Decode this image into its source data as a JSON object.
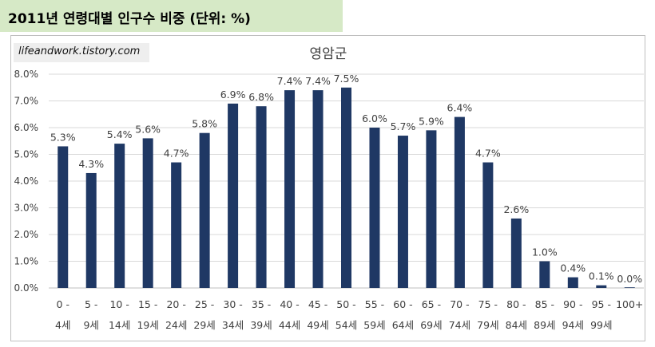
{
  "header": {
    "title": "2011년 연령대별 인구수 비중 (단위: %)"
  },
  "watermark": {
    "text": "lifeandwork.tistory.com"
  },
  "chart_data": {
    "type": "bar",
    "title": "영암군",
    "categories": [
      [
        "0 -",
        "4세"
      ],
      [
        "5 -",
        "9세"
      ],
      [
        "10 -",
        "14세"
      ],
      [
        "15 -",
        "19세"
      ],
      [
        "20 -",
        "24세"
      ],
      [
        "25 -",
        "29세"
      ],
      [
        "30 -",
        "34세"
      ],
      [
        "35 -",
        "39세"
      ],
      [
        "40 -",
        "44세"
      ],
      [
        "45 -",
        "49세"
      ],
      [
        "50 -",
        "54세"
      ],
      [
        "55 -",
        "59세"
      ],
      [
        "60 -",
        "64세"
      ],
      [
        "65 -",
        "69세"
      ],
      [
        "70 -",
        "74세"
      ],
      [
        "75 -",
        "79세"
      ],
      [
        "80 -",
        "84세"
      ],
      [
        "85 -",
        "89세"
      ],
      [
        "90 -",
        "94세"
      ],
      [
        "95 -",
        "99세"
      ],
      [
        "100+",
        ""
      ]
    ],
    "values": [
      5.3,
      4.3,
      5.4,
      5.6,
      4.7,
      5.8,
      6.9,
      6.8,
      7.4,
      7.4,
      7.5,
      6.0,
      5.7,
      5.9,
      6.4,
      4.7,
      2.6,
      1.0,
      0.4,
      0.1,
      0.0
    ],
    "value_labels": [
      "5.3%",
      "4.3%",
      "5.4%",
      "5.6%",
      "4.7%",
      "5.8%",
      "6.9%",
      "6.8%",
      "7.4%",
      "7.4%",
      "7.5%",
      "6.0%",
      "5.7%",
      "5.9%",
      "6.4%",
      "4.7%",
      "2.6%",
      "1.0%",
      "0.4%",
      "0.1%",
      "0.0%"
    ],
    "yticks": [
      "0.0%",
      "1.0%",
      "2.0%",
      "3.0%",
      "4.0%",
      "5.0%",
      "6.0%",
      "7.0%",
      "8.0%"
    ],
    "ylim": [
      0,
      8
    ],
    "grid": true,
    "bar_color": "#1f3864",
    "legend": "none"
  }
}
